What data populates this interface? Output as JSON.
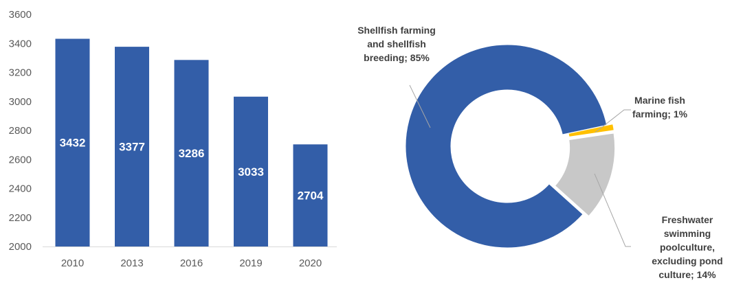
{
  "chart_data": [
    {
      "type": "bar",
      "title": "",
      "xlabel": "",
      "ylabel": "",
      "categories": [
        "2010",
        "2013",
        "2016",
        "2019",
        "2020"
      ],
      "values": [
        3432,
        3377,
        3286,
        3033,
        2704
      ],
      "ylim": [
        2000,
        3600
      ],
      "yticks": [
        "2000",
        "2200",
        "2400",
        "2600",
        "2800",
        "3000",
        "3200",
        "3400",
        "3600"
      ],
      "grid": false,
      "color": "#335EA8"
    },
    {
      "type": "pie",
      "variant": "donut",
      "slices": [
        {
          "label_lines": [
            "Shellfish farming",
            "and shellfish",
            "breeding; 85%"
          ],
          "value": 85,
          "color": "#335EA8"
        },
        {
          "label_lines": [
            "Marine fish",
            "farming; 1%"
          ],
          "value": 1,
          "color": "#FFC000"
        },
        {
          "label_lines": [
            "Freshwater",
            "swimming",
            "poolculture,",
            "excluding pond",
            "culture; 14%"
          ],
          "value": 14,
          "color": "#C8C8C8"
        }
      ]
    }
  ]
}
